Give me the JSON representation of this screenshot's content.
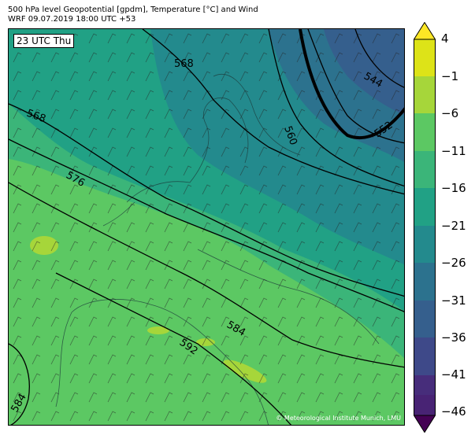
{
  "header": {
    "line1": "500 hPa level Geopotential [gpdm], Temperature [°C] and Wind",
    "line2": "WRF 09.07.2019 18:00 UTC +53"
  },
  "map": {
    "time_label": "23 UTC Thu",
    "credit": "© Meteorological Institute Munich, LMU",
    "contour_labels": [
      "568",
      "568",
      "576",
      "560",
      "544",
      "552",
      "584",
      "592",
      "584"
    ],
    "temperature_fill_colors": {
      "warm_yellow_green": "#a6d63a",
      "light_green": "#5cc863",
      "green": "#3bb579",
      "teal_green": "#21a185",
      "teal": "#238a8d",
      "blue_teal": "#2c728e",
      "blue": "#355f8d"
    }
  },
  "colorbar": {
    "ticks": [
      "4",
      "−1",
      "−6",
      "−11",
      "−16",
      "−21",
      "−26",
      "−31",
      "−36",
      "−41",
      "−46"
    ],
    "colors": [
      "#fde725",
      "#dde318",
      "#a6d63a",
      "#5cc863",
      "#3bb579",
      "#21a185",
      "#238a8d",
      "#2c728e",
      "#355f8d",
      "#3e4989",
      "#472d7b",
      "#482374",
      "#440154"
    ]
  }
}
